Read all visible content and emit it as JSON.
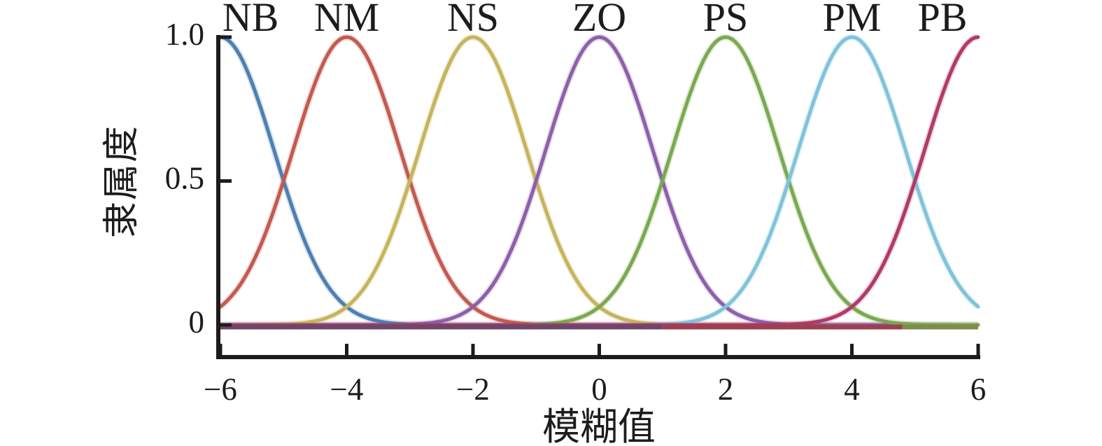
{
  "figure": {
    "background": "#ffffff",
    "axis_color": "#1c1c1c",
    "text_color": "#1c1c1c"
  },
  "chart_data": {
    "type": "line",
    "subtype": "gaussian-fuzzy-membership-functions",
    "title": "",
    "xlabel": "模糊值",
    "ylabel": "隶属度",
    "xlim": [
      -6,
      6
    ],
    "ylim": [
      0,
      1
    ],
    "grid": false,
    "legend_position": "labels-above-peaks",
    "x_ticks": [
      -6,
      -4,
      -2,
      0,
      2,
      4,
      6
    ],
    "x_tick_labels": [
      "−6",
      "−4",
      "−2",
      "0",
      "2",
      "4",
      "6"
    ],
    "y_ticks": [
      1.0,
      0.5,
      0
    ],
    "y_tick_labels": [
      "1.0",
      "0.5",
      "0"
    ],
    "sigma": 0.85,
    "sample_step": 0.05,
    "series": [
      {
        "name": "NB",
        "center": -6,
        "peak": 1.0,
        "color": "#4d7fb3"
      },
      {
        "name": "NM",
        "center": -4,
        "peak": 1.0,
        "color": "#c25a50"
      },
      {
        "name": "NS",
        "center": -2,
        "peak": 1.0,
        "color": "#c6b45c"
      },
      {
        "name": "ZO",
        "center": 0,
        "peak": 1.0,
        "color": "#8d5fa9"
      },
      {
        "name": "PS",
        "center": 2,
        "peak": 1.0,
        "color": "#7aa950"
      },
      {
        "name": "PM",
        "center": 4,
        "peak": 1.0,
        "color": "#7fc3da"
      },
      {
        "name": "PB",
        "center": 6,
        "peak": 1.0,
        "color": "#b03a67"
      }
    ],
    "baseline_segments": [
      {
        "from": -6,
        "to": 1.0,
        "color": "#6d4769"
      },
      {
        "from": 1.0,
        "to": 4.8,
        "color": "#9c4050"
      },
      {
        "from": 4.8,
        "to": 6,
        "color": "#7f8c4c"
      }
    ]
  }
}
